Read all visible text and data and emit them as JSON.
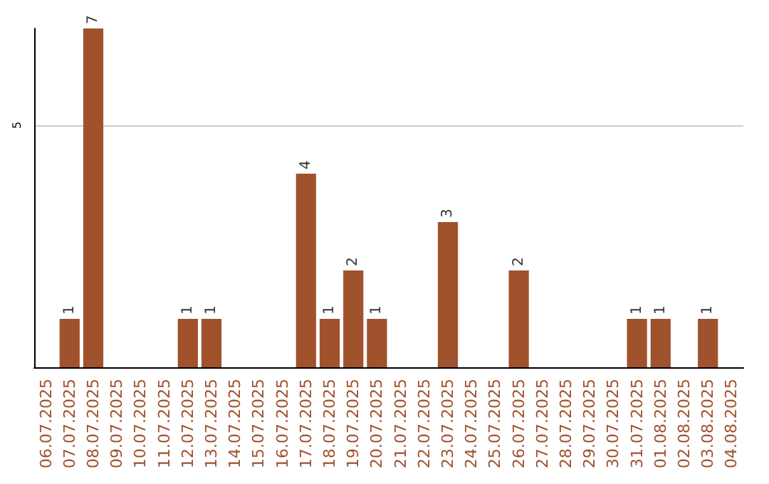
{
  "chart_data": {
    "type": "bar",
    "categories": [
      "06.07.2025",
      "07.07.2025",
      "08.07.2025",
      "09.07.2025",
      "10.07.2025",
      "11.07.2025",
      "12.07.2025",
      "13.07.2025",
      "14.07.2025",
      "15.07.2025",
      "16.07.2025",
      "17.07.2025",
      "18.07.2025",
      "19.07.2025",
      "20.07.2025",
      "21.07.2025",
      "22.07.2025",
      "23.07.2025",
      "24.07.2025",
      "25.07.2025",
      "26.07.2025",
      "27.07.2025",
      "28.07.2025",
      "29.07.2025",
      "30.07.2025",
      "31.07.2025",
      "01.08.2025",
      "02.08.2025",
      "03.08.2025",
      "04.08.2025"
    ],
    "values": [
      0,
      1,
      7,
      0,
      0,
      0,
      1,
      1,
      0,
      0,
      0,
      4,
      1,
      2,
      1,
      0,
      0,
      3,
      0,
      0,
      2,
      0,
      0,
      0,
      0,
      1,
      1,
      0,
      1,
      0
    ],
    "value_labels": [
      null,
      "1",
      "7",
      null,
      null,
      null,
      "1",
      "1",
      null,
      null,
      null,
      "4",
      "1",
      "2",
      "1",
      null,
      null,
      "3",
      null,
      null,
      "2",
      null,
      null,
      null,
      null,
      "1",
      "1",
      null,
      "1",
      null
    ],
    "color": "#a0522d",
    "ylim": [
      0,
      7
    ],
    "yticks": [
      5
    ],
    "grid": "y"
  }
}
